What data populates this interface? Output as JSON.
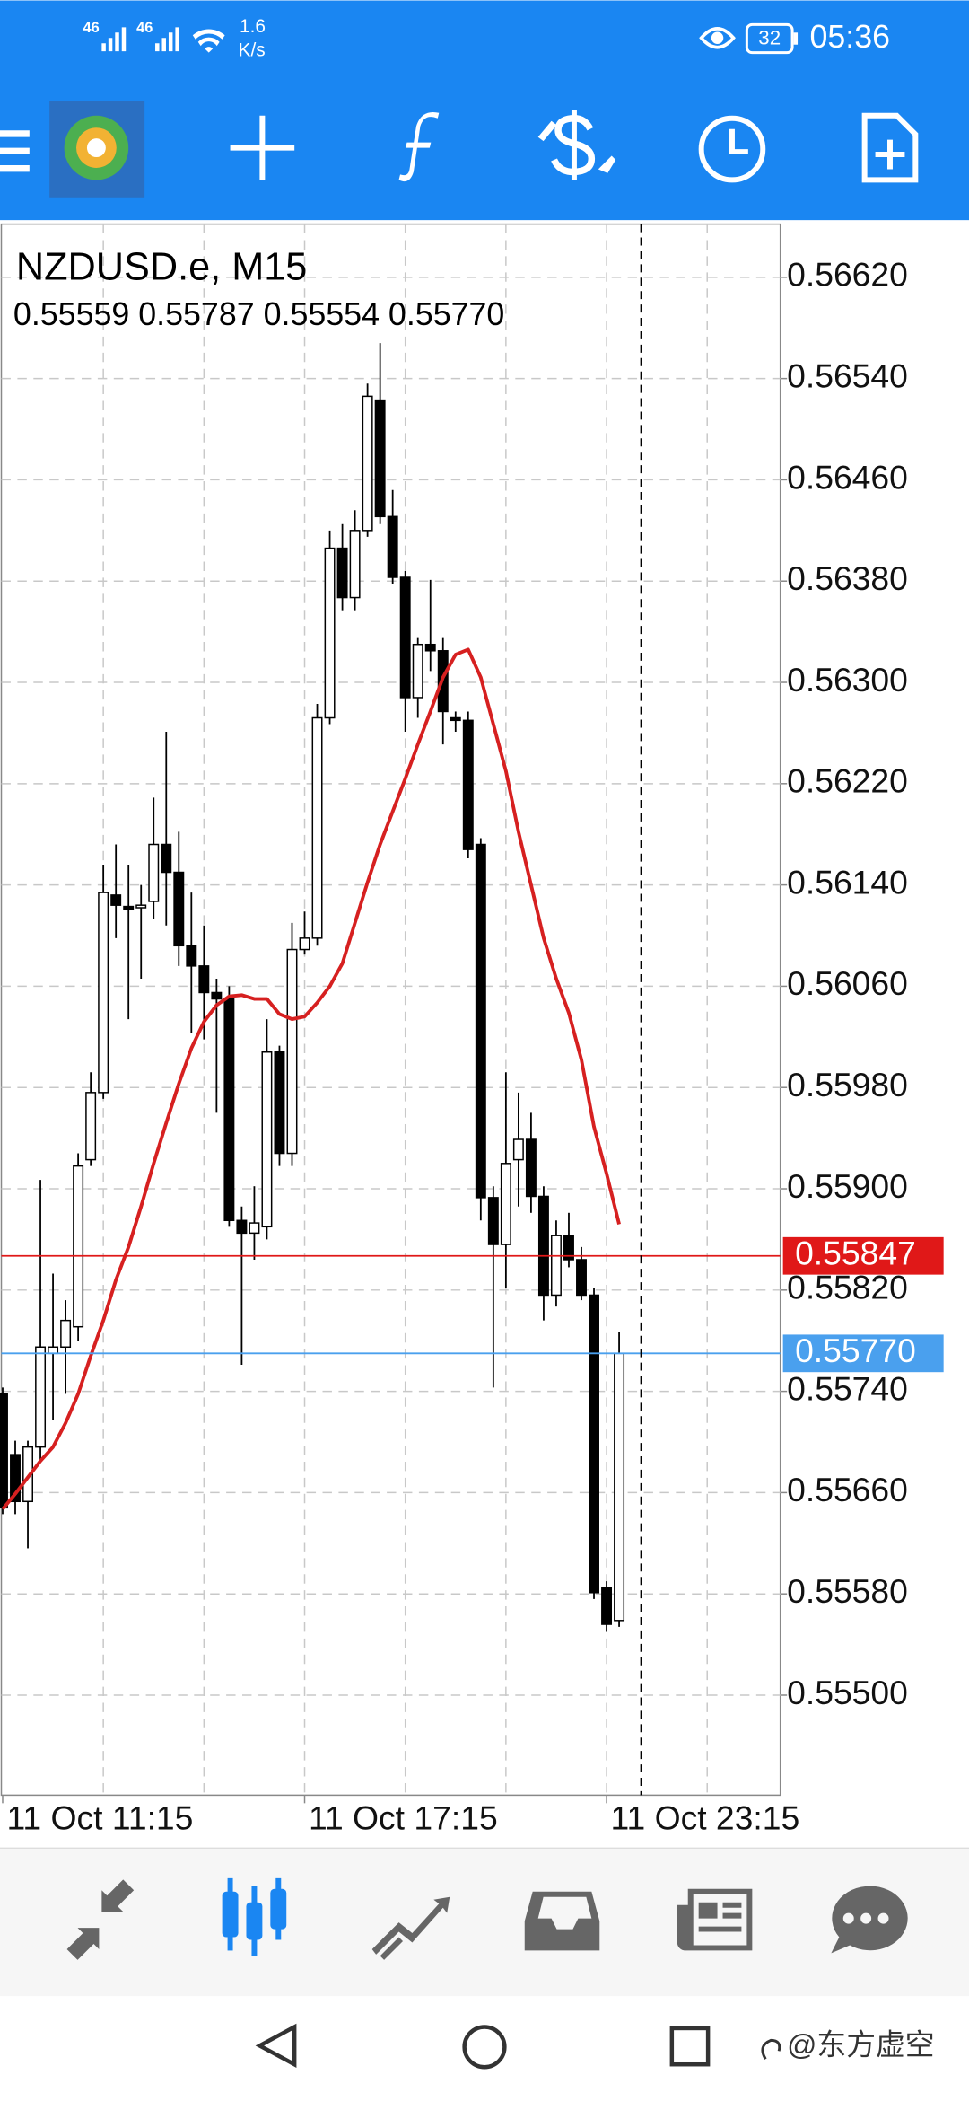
{
  "status": {
    "signal1": "46",
    "signal2": "46",
    "speed": "1.6",
    "speed_unit": "K/s",
    "battery": "32",
    "time": "05:36"
  },
  "watermark": "@东方虚空",
  "chart_data": {
    "type": "candlestick",
    "title": "NZDUSD.e, M15",
    "ohlc_text": "0.55559 0.55787 0.55554 0.55770",
    "categories": [
      "11 Oct 11:15",
      null,
      null,
      null,
      null,
      null,
      null,
      null,
      null,
      null,
      null,
      null,
      null,
      null,
      null,
      null,
      null,
      null,
      null,
      null,
      null,
      null,
      null,
      null,
      "11 Oct 17:15",
      null,
      null,
      null,
      null,
      null,
      null,
      null,
      null,
      null,
      null,
      null,
      null,
      null,
      null,
      null,
      null,
      null,
      null,
      null,
      null,
      null,
      null,
      null,
      "11 Oct 23:15",
      null
    ],
    "open": [
      0.55738,
      0.5569,
      0.55653,
      0.55696,
      0.5577,
      0.55775,
      0.55791,
      0.55923,
      0.55976,
      0.56132,
      0.56123,
      0.56122,
      0.56127,
      0.56172,
      0.5615,
      0.56092,
      0.56076,
      0.56055,
      0.5605,
      0.55875,
      0.55865,
      0.5587,
      0.56008,
      0.55928,
      0.56089,
      0.56098,
      0.56272,
      0.56406,
      0.56367,
      0.5642,
      0.56523,
      0.56431,
      0.56383,
      0.56288,
      0.5633,
      0.56325,
      0.56272,
      0.5627,
      0.56172,
      0.55893,
      0.55856,
      0.55923,
      0.55939,
      0.55894,
      0.55816,
      0.55863,
      0.55844,
      0.55816,
      0.55585,
      0.55559
    ],
    "high": [
      0.55743,
      0.55701,
      0.55701,
      0.55907,
      0.55833,
      0.55812,
      0.55928,
      0.55992,
      0.56156,
      0.56172,
      0.56156,
      0.5614,
      0.56209,
      0.56261,
      0.56182,
      0.56134,
      0.56108,
      0.56066,
      0.5606,
      0.55886,
      0.55902,
      0.56034,
      0.56013,
      0.5611,
      0.56119,
      0.56283,
      0.5642,
      0.56425,
      0.56436,
      0.56536,
      0.56568,
      0.56452,
      0.56388,
      0.56335,
      0.56381,
      0.56335,
      0.56277,
      0.56277,
      0.56177,
      0.55902,
      0.55992,
      0.55976,
      0.5596,
      0.55902,
      0.55875,
      0.55881,
      0.55854,
      0.55822,
      0.5559,
      0.55787
    ],
    "low": [
      0.55643,
      0.55643,
      0.55616,
      0.55685,
      0.55717,
      0.55738,
      0.5578,
      0.55918,
      0.55971,
      0.56098,
      0.56034,
      0.56066,
      0.56113,
      0.56108,
      0.56076,
      0.56023,
      0.56018,
      0.5596,
      0.5587,
      0.55761,
      0.55844,
      0.5586,
      0.55918,
      0.55918,
      0.56085,
      0.56092,
      0.56267,
      0.56357,
      0.56357,
      0.56415,
      0.56425,
      0.56378,
      0.56261,
      0.56272,
      0.56309,
      0.56251,
      0.56261,
      0.56161,
      0.55875,
      0.55743,
      0.55822,
      0.55886,
      0.55881,
      0.55796,
      0.55807,
      0.55838,
      0.55812,
      0.55576,
      0.5555,
      0.55554
    ],
    "close": [
      0.55648,
      0.55653,
      0.55696,
      0.55775,
      0.55775,
      0.55796,
      0.55918,
      0.55976,
      0.56134,
      0.56124,
      0.56121,
      0.56124,
      0.56172,
      0.5615,
      0.56092,
      0.56076,
      0.56055,
      0.5605,
      0.55875,
      0.55865,
      0.55873,
      0.56008,
      0.55928,
      0.56089,
      0.56098,
      0.56272,
      0.56406,
      0.56367,
      0.5642,
      0.56526,
      0.56431,
      0.56383,
      0.56288,
      0.5633,
      0.56325,
      0.56277,
      0.5627,
      0.56168,
      0.55893,
      0.55856,
      0.5592,
      0.55939,
      0.55894,
      0.55816,
      0.55863,
      0.55844,
      0.55816,
      0.55581,
      0.55556,
      0.5577
    ],
    "up_color": "#ffffff",
    "down_color": "#000000",
    "ma_color": "#d62020",
    "ma_values": [
      0.55647,
      0.55659,
      0.55672,
      0.55685,
      0.55696,
      0.55715,
      0.55738,
      0.55768,
      0.55796,
      0.55828,
      0.55854,
      0.55886,
      0.5592,
      0.55952,
      0.55983,
      0.56011,
      0.56032,
      0.56045,
      0.56052,
      0.56053,
      0.5605,
      0.5605,
      0.56038,
      0.56034,
      0.56036,
      0.56047,
      0.5606,
      0.56078,
      0.5611,
      0.56142,
      0.56172,
      0.56198,
      0.56224,
      0.56251,
      0.56277,
      0.56304,
      0.56322,
      0.56326,
      0.56304,
      0.56267,
      0.5623,
      0.56182,
      0.5614,
      0.56098,
      0.56066,
      0.56039,
      0.56002,
      0.55949,
      0.55912,
      0.55872
    ],
    "ylim": [
      0.55421,
      0.56662
    ],
    "yticks": [
      {
        "value": 0.5662,
        "label": "0.56620"
      },
      {
        "value": 0.5654,
        "label": "0.56540"
      },
      {
        "value": 0.5646,
        "label": "0.56460"
      },
      {
        "value": 0.5638,
        "label": "0.56380"
      },
      {
        "value": 0.563,
        "label": "0.56300"
      },
      {
        "value": 0.5622,
        "label": "0.56220"
      },
      {
        "value": 0.5614,
        "label": "0.56140"
      },
      {
        "value": 0.5606,
        "label": "0.56060"
      },
      {
        "value": 0.5598,
        "label": "0.55980"
      },
      {
        "value": 0.559,
        "label": "0.55900"
      },
      {
        "value": 0.5582,
        "label": "0.55820"
      },
      {
        "value": 0.5574,
        "label": "0.55740"
      },
      {
        "value": 0.5566,
        "label": "0.55660"
      },
      {
        "value": 0.5558,
        "label": "0.55580"
      },
      {
        "value": 0.555,
        "label": "0.55500"
      }
    ],
    "grid": true,
    "price_lines": [
      {
        "value": 0.55847,
        "color": "#e01818"
      },
      {
        "value": 0.5577,
        "label": "0.55770",
        "color": "#4aa0ee"
      }
    ]
  }
}
